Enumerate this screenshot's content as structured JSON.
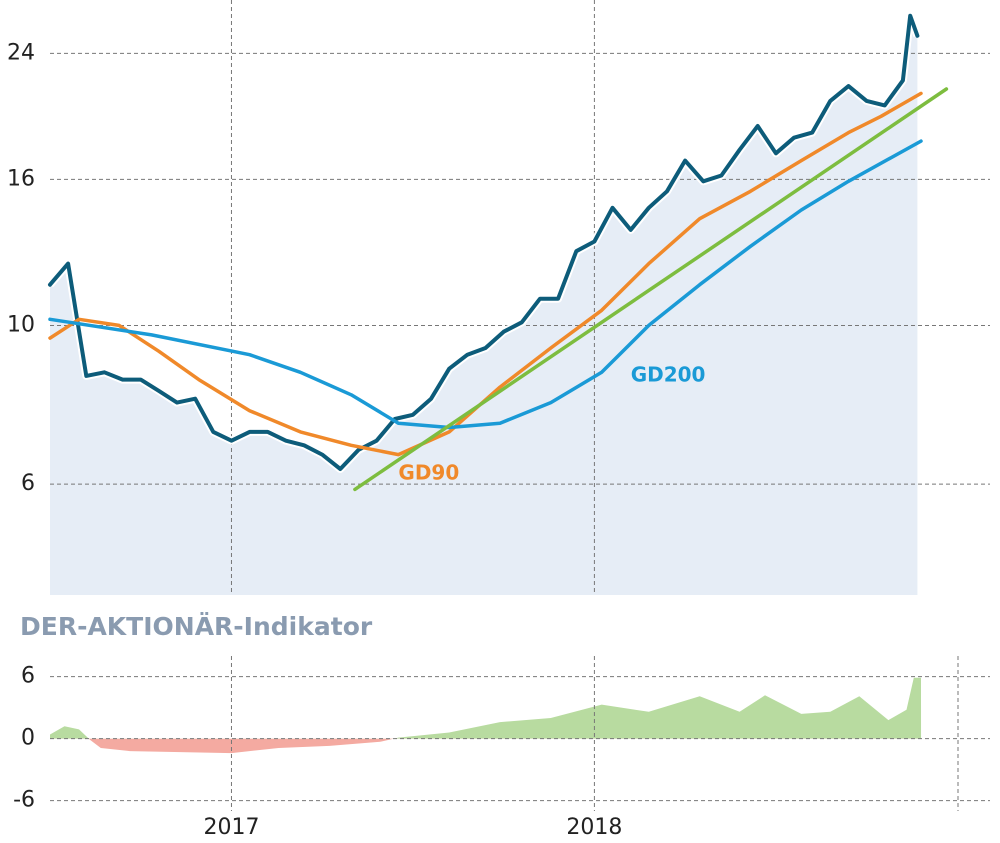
{
  "chart_data": [
    {
      "type": "line",
      "log_scale": true,
      "grid": true,
      "xlim": [
        2016.5,
        2019.09
      ],
      "xticks": [
        2017,
        2018
      ],
      "ylim": [
        4.2,
        28.5
      ],
      "yticks": [
        24,
        16,
        10,
        6
      ],
      "fill_color": "#e6edf6",
      "series": [
        {
          "color": "#0d5c7a",
          "fill": true,
          "x": [
            2016.5,
            2016.55,
            2016.6,
            2016.65,
            2016.7,
            2016.75,
            2016.8,
            2016.85,
            2016.9,
            2016.95,
            2017.0,
            2017.05,
            2017.1,
            2017.15,
            2017.2,
            2017.25,
            2017.3,
            2017.35,
            2017.4,
            2017.45,
            2017.5,
            2017.55,
            2017.6,
            2017.65,
            2017.7,
            2017.75,
            2017.8,
            2017.85,
            2017.9,
            2017.95,
            2018.0,
            2018.05,
            2018.1,
            2018.15,
            2018.2,
            2018.25,
            2018.3,
            2018.35,
            2018.4,
            2018.45,
            2018.5,
            2018.55,
            2018.6,
            2018.65,
            2018.7,
            2018.75,
            2018.8,
            2018.85,
            2018.87,
            2018.89
          ],
          "values": [
            11.4,
            12.2,
            8.5,
            8.6,
            8.4,
            8.4,
            8.1,
            7.8,
            7.9,
            7.1,
            6.9,
            7.1,
            7.1,
            6.9,
            6.8,
            6.6,
            6.3,
            6.7,
            6.9,
            7.4,
            7.5,
            7.9,
            8.7,
            9.1,
            9.3,
            9.8,
            10.1,
            10.9,
            10.9,
            12.7,
            13.1,
            14.6,
            13.6,
            14.6,
            15.4,
            17.0,
            15.9,
            16.2,
            17.6,
            19.0,
            17.4,
            18.3,
            18.6,
            20.6,
            21.6,
            20.6,
            20.3,
            22.0,
            27.1,
            25.4
          ]
        },
        {
          "name": "GD90",
          "color": "#f0892a",
          "x": [
            2016.5,
            2016.58,
            2016.69,
            2016.8,
            2016.91,
            2017.05,
            2017.19,
            2017.33,
            2017.46,
            2017.6,
            2017.74,
            2017.88,
            2018.02,
            2018.15,
            2018.29,
            2018.43,
            2018.57,
            2018.7,
            2018.79,
            2018.9
          ],
          "values": [
            9.6,
            10.2,
            10.0,
            9.2,
            8.4,
            7.6,
            7.1,
            6.8,
            6.6,
            7.1,
            8.2,
            9.3,
            10.5,
            12.2,
            14.1,
            15.4,
            17.0,
            18.6,
            19.6,
            21.1
          ]
        },
        {
          "name": "GD200",
          "color": "#1a9ad6",
          "x": [
            2016.5,
            2016.78,
            2017.05,
            2017.19,
            2017.33,
            2017.46,
            2017.6,
            2017.74,
            2017.88,
            2018.02,
            2018.15,
            2018.29,
            2018.43,
            2018.57,
            2018.7,
            2018.9
          ],
          "values": [
            10.2,
            9.7,
            9.1,
            8.6,
            8.0,
            7.3,
            7.2,
            7.3,
            7.8,
            8.6,
            10.0,
            11.4,
            12.9,
            14.5,
            15.9,
            18.1
          ]
        },
        {
          "color": "#7dbd3f",
          "x": [
            2017.34,
            2018.97
          ],
          "values": [
            5.9,
            21.4
          ]
        }
      ],
      "annotations": [
        {
          "series": 1,
          "x": 2017.46,
          "y": 6.2
        },
        {
          "series": 2,
          "x": 2018.1,
          "y": 8.5
        }
      ]
    },
    {
      "type": "area",
      "title": "DER-AKTIONÄR-Indikator",
      "xlim": [
        2016.5,
        2019.09
      ],
      "xticks": [
        2017,
        2018
      ],
      "ylim": [
        -7,
        8
      ],
      "yticks": [
        6,
        0,
        -6
      ],
      "grid": true,
      "positive_color": "#b8dba0",
      "negative_color": "#f4aaa1",
      "x": [
        2016.5,
        2016.54,
        2016.58,
        2016.61,
        2016.64,
        2016.72,
        2016.86,
        2017.0,
        2017.13,
        2017.27,
        2017.41,
        2017.46,
        2017.6,
        2017.74,
        2017.88,
        2018.02,
        2018.15,
        2018.29,
        2018.4,
        2018.47,
        2018.57,
        2018.65,
        2018.73,
        2018.81,
        2018.86,
        2018.88,
        2018.9
      ],
      "values": [
        0.4,
        1.2,
        0.9,
        -0.1,
        -0.9,
        -1.2,
        -1.3,
        -1.4,
        -0.9,
        -0.7,
        -0.3,
        0.1,
        0.6,
        1.6,
        2.0,
        3.3,
        2.6,
        4.1,
        2.6,
        4.2,
        2.4,
        2.6,
        4.1,
        1.8,
        2.8,
        5.9,
        5.9
      ]
    }
  ]
}
